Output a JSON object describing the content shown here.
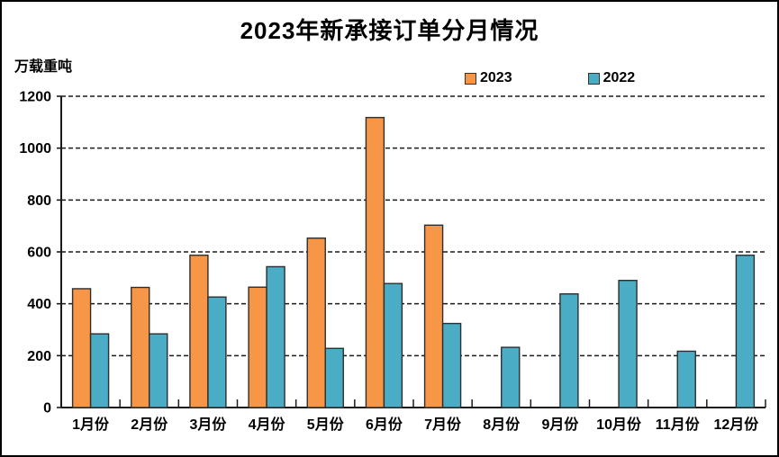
{
  "title": "2023年新承接订单分月情况",
  "unit_label": "万载重吨",
  "colors": {
    "series_2023": "#F79646",
    "series_2022": "#4BACC6",
    "bar_border": "#2E2E2E",
    "axis": "#1a1a1a",
    "gridline": "#1a1a1a",
    "background": "#ffffff",
    "text": "#000000"
  },
  "chart_data": {
    "type": "bar",
    "title": "2023年新承接订单分月情况",
    "ylabel": "万载重吨",
    "xlabel": "",
    "categories": [
      "1月份",
      "2月份",
      "3月份",
      "4月份",
      "5月份",
      "6月份",
      "7月份",
      "8月份",
      "9月份",
      "10月份",
      "11月份",
      "12月份"
    ],
    "series": [
      {
        "name": "2023",
        "color": "#F79646",
        "values": [
          458,
          463,
          587,
          464,
          653,
          1118,
          703,
          null,
          null,
          null,
          null,
          null
        ]
      },
      {
        "name": "2022",
        "color": "#4BACC6",
        "values": [
          284,
          284,
          426,
          543,
          228,
          478,
          324,
          232,
          438,
          490,
          217,
          587
        ]
      }
    ],
    "ylim": [
      0,
      1200
    ],
    "y_ticks": [
      0,
      200,
      400,
      600,
      800,
      1000,
      1200
    ],
    "grid": "horizontal-dashed",
    "legend_position": "top-center"
  }
}
